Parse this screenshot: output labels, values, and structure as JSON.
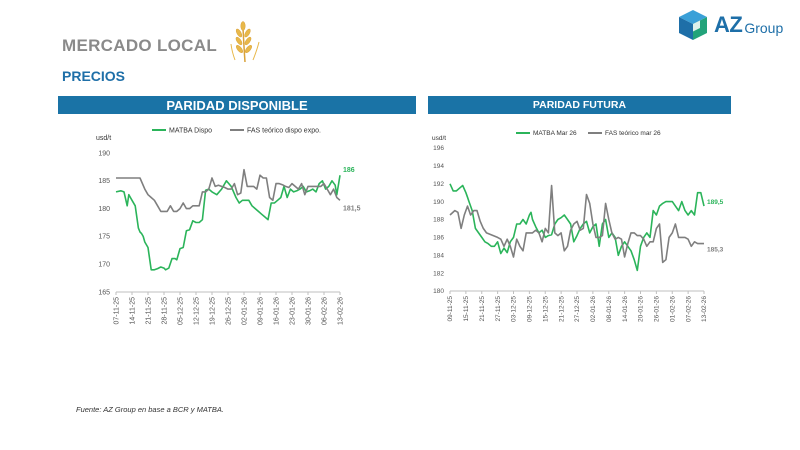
{
  "header": {
    "title": "MERCADO LOCAL",
    "subtitle": "PRECIOS"
  },
  "logo": {
    "text_az": "AZ",
    "text_group": "Group",
    "accent": "#1e6fa8"
  },
  "colors": {
    "bar": "#1a73a6",
    "green": "#2bb45a",
    "gray": "#7f7f7f"
  },
  "source": "Fuente: AZ Group en base a BCR y MATBA.",
  "chart_data": [
    {
      "type": "line",
      "title": "PARIDAD DISPONIBLE",
      "ylabel": "usd/t",
      "ylim": [
        165,
        190
      ],
      "yticks": [
        165,
        170,
        175,
        180,
        185,
        190
      ],
      "xtick_labels": [
        "07-11-25",
        "14-11-25",
        "21-11-25",
        "28-11-25",
        "05-12-25",
        "12-12-25",
        "19-12-25",
        "26-12-25",
        "02-01-26",
        "09-01-26",
        "16-01-26",
        "23-01-26",
        "30-01-26",
        "06-02-26",
        "13-02-26"
      ],
      "series": [
        {
          "name": "MATBA Dispo",
          "color": "#2bb45a",
          "end_label": "186",
          "x": [
            0,
            0.3,
            0.5,
            0.7,
            0.8,
            0.9,
            1.0,
            1.2,
            1.4,
            1.5,
            1.6,
            1.7,
            1.8,
            2.0,
            2.2,
            2.4,
            2.6,
            2.8,
            3.0,
            3.1,
            3.3,
            3.5,
            3.7,
            3.8,
            4.0,
            4.2,
            4.4,
            4.6,
            4.8,
            5.0,
            5.2,
            5.4,
            5.6,
            5.8,
            6.0,
            6.3,
            6.6,
            6.9,
            7.2,
            7.5,
            7.7,
            7.9,
            8.1,
            8.3,
            8.5,
            8.7,
            8.9,
            9.1,
            9.3,
            9.5,
            9.7,
            9.9,
            10.1,
            10.3,
            10.5,
            10.7,
            10.9,
            11.1,
            11.3,
            11.5,
            11.7,
            11.9,
            12.1,
            12.3,
            12.5,
            12.7,
            12.9,
            13.1,
            13.3,
            13.5,
            13.7,
            13.8,
            14.0
          ],
          "values": [
            183,
            183.2,
            183,
            180.5,
            182.5,
            182,
            181.5,
            180.5,
            176.5,
            175.8,
            175.5,
            175,
            174,
            173,
            169,
            169,
            169.2,
            169.5,
            169.3,
            169,
            169.3,
            171,
            171,
            170.8,
            172.8,
            173,
            176,
            176.2,
            177.8,
            177.5,
            177.5,
            178,
            183.3,
            183.5,
            183,
            182.5,
            183.5,
            185,
            184,
            182,
            181,
            181.5,
            181.5,
            181.5,
            180.5,
            180,
            179.5,
            179,
            178.5,
            178,
            181,
            181,
            181.5,
            182,
            184,
            182,
            183.5,
            183,
            183.2,
            183.5,
            184,
            183,
            183.2,
            183.5,
            183,
            184.5,
            185,
            183.5,
            184,
            185,
            184.2,
            182.5,
            186
          ]
        },
        {
          "name": "FAS teórico dispo expo.",
          "color": "#7f7f7f",
          "end_label": "181,5",
          "x": [
            0,
            0.4,
            0.8,
            1.2,
            1.5,
            1.8,
            2.0,
            2.2,
            2.4,
            2.6,
            2.8,
            3.0,
            3.2,
            3.4,
            3.6,
            3.8,
            4.0,
            4.2,
            4.4,
            4.6,
            4.8,
            5.0,
            5.2,
            5.4,
            5.6,
            5.8,
            6.0,
            6.2,
            6.4,
            6.6,
            6.8,
            7.0,
            7.2,
            7.4,
            7.6,
            7.8,
            8.0,
            8.2,
            8.4,
            8.6,
            8.8,
            9.0,
            9.2,
            9.4,
            9.6,
            9.8,
            10.0,
            10.2,
            10.4,
            10.6,
            10.8,
            11.0,
            11.2,
            11.4,
            11.6,
            11.8,
            12.0,
            12.2,
            12.4,
            12.6,
            12.8,
            13.0,
            13.2,
            13.4,
            13.6,
            13.8,
            14.0
          ],
          "values": [
            185.5,
            185.5,
            185.5,
            185.5,
            185.5,
            183.5,
            182.5,
            182,
            181.5,
            180.5,
            179.5,
            179.5,
            179.5,
            180.5,
            179.5,
            179.5,
            180,
            181,
            180,
            180,
            180.5,
            180.5,
            180.5,
            183,
            183,
            183.5,
            185.5,
            184,
            184.2,
            184,
            183.8,
            183.5,
            183.5,
            184.5,
            182.5,
            182.8,
            187,
            184,
            184,
            184,
            183.5,
            186,
            185.5,
            185.5,
            182,
            181.5,
            184.5,
            184.5,
            184.3,
            184,
            183.8,
            184.5,
            184,
            183.5,
            184.5,
            182.5,
            184,
            184,
            184,
            184,
            184,
            184.5,
            183.5,
            182.5,
            183.5,
            182,
            181.5
          ]
        }
      ]
    },
    {
      "type": "line",
      "title": "PARIDAD FUTURA",
      "ylabel": "usd/t",
      "ylim": [
        180,
        196
      ],
      "yticks": [
        180,
        182,
        184,
        186,
        188,
        190,
        192,
        194,
        196
      ],
      "xtick_labels": [
        "09-11-25",
        "15-11-25",
        "21-11-25",
        "27-11-25",
        "03-12-25",
        "09-12-25",
        "15-12-25",
        "21-12-25",
        "27-12-25",
        "02-01-26",
        "08-01-26",
        "14-01-26",
        "20-01-26",
        "26-01-26",
        "01-02-26",
        "07-02-26",
        "13-02-26"
      ],
      "series": [
        {
          "name": "MATBA Mar 26",
          "color": "#2bb45a",
          "end_label": "189,5",
          "x": [
            0,
            0.2,
            0.4,
            0.6,
            0.8,
            1.0,
            1.1,
            1.2,
            1.4,
            1.6,
            1.8,
            2.0,
            2.2,
            2.4,
            2.6,
            2.8,
            3.0,
            3.2,
            3.4,
            3.6,
            3.8,
            4.0,
            4.2,
            4.4,
            4.6,
            4.8,
            5.0,
            5.1,
            5.2,
            5.4,
            5.6,
            5.8,
            6.0,
            6.2,
            6.4,
            6.6,
            6.8,
            7.0,
            7.2,
            7.4,
            7.6,
            7.8,
            8.0,
            8.2,
            8.4,
            8.6,
            8.8,
            9.0,
            9.2,
            9.4,
            9.6,
            9.8,
            10.0,
            10.2,
            10.4,
            10.6,
            10.8,
            11.0,
            11.2,
            11.4,
            11.6,
            11.8,
            12.0,
            12.2,
            12.4,
            12.6,
            12.8,
            13.0,
            13.2,
            13.4,
            13.6,
            13.8,
            14.0,
            14.2,
            14.4,
            14.6,
            14.8,
            15.0,
            15.2,
            15.4,
            15.6,
            15.8,
            16.0
          ],
          "values": [
            192,
            191.2,
            191.2,
            191.5,
            191.8,
            191,
            190.5,
            190,
            189,
            187,
            186.5,
            186,
            185.5,
            185.3,
            185,
            185,
            185.5,
            184.2,
            184.8,
            184.3,
            185.5,
            186,
            187.5,
            187.5,
            188,
            187.5,
            188.5,
            188.8,
            188,
            187.2,
            186.5,
            186.8,
            186,
            186.2,
            186.3,
            187.5,
            188,
            188.2,
            188.5,
            188,
            187.5,
            185.5,
            186.2,
            187,
            187.5,
            187.8,
            186.5,
            187.2,
            187.5,
            185,
            187.5,
            188,
            186,
            186.5,
            186,
            184,
            185,
            185.5,
            185,
            184.5,
            183.5,
            182.3,
            185,
            186,
            186.5,
            186,
            189,
            188.5,
            189.5,
            189.8,
            190,
            190,
            190,
            189.5,
            189,
            190,
            189,
            188.5,
            189,
            188.5,
            191,
            191,
            189.5
          ]
        },
        {
          "name": "FAS teórico mar 26",
          "color": "#7f7f7f",
          "end_label": "185,3",
          "x": [
            0,
            0.3,
            0.5,
            0.7,
            0.9,
            1.1,
            1.3,
            1.5,
            1.7,
            1.9,
            2.1,
            2.3,
            3.0,
            3.2,
            3.4,
            3.6,
            3.8,
            4.0,
            4.2,
            4.4,
            4.6,
            4.8,
            5.0,
            5.2,
            5.4,
            5.6,
            5.8,
            6.0,
            6.2,
            6.4,
            6.6,
            6.8,
            7.0,
            7.2,
            7.4,
            7.6,
            7.8,
            8.0,
            8.2,
            8.4,
            8.6,
            8.8,
            9.0,
            9.2,
            9.4,
            9.6,
            9.8,
            10.0,
            10.2,
            10.4,
            10.6,
            10.8,
            11.0,
            11.2,
            11.4,
            11.6,
            11.8,
            12.0,
            12.2,
            12.4,
            12.6,
            12.8,
            13.0,
            13.2,
            13.4,
            13.6,
            13.8,
            14.0,
            14.2,
            14.4,
            14.6,
            14.8,
            15.0,
            15.2,
            15.4,
            15.6,
            15.8,
            16.0
          ],
          "values": [
            188.5,
            189,
            188.8,
            187,
            188.5,
            189.5,
            188.5,
            189,
            189,
            187.8,
            187,
            186.5,
            186,
            185.8,
            185,
            185.8,
            185,
            183.8,
            185.8,
            185,
            184.5,
            186.5,
            186.5,
            186.5,
            186.8,
            186.5,
            185.5,
            187,
            186.5,
            191.8,
            186.5,
            186.2,
            186.5,
            184.5,
            185,
            186.8,
            187.5,
            187.8,
            186.8,
            187,
            190.8,
            189.8,
            187.5,
            186,
            186,
            186.2,
            189.8,
            188,
            186.5,
            185.8,
            186,
            185.8,
            183.8,
            185.3,
            186.5,
            186.5,
            186.2,
            186.2,
            185.8,
            185,
            185.5,
            185.5,
            187,
            187.5,
            183.2,
            183.5,
            186,
            186.5,
            187.5,
            186,
            186,
            186,
            185.8,
            185,
            185.5,
            185.3,
            185.3,
            185.3
          ]
        }
      ]
    }
  ]
}
